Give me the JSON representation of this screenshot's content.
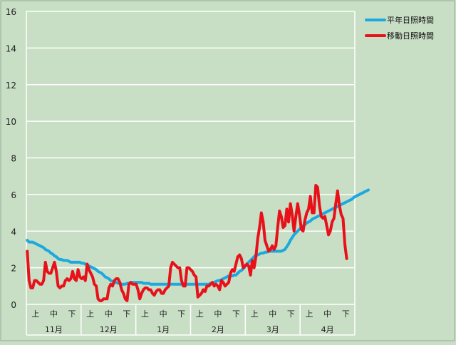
{
  "chart_data": {
    "type": "line",
    "ylim": [
      0,
      16
    ],
    "yticks": [
      0,
      2,
      4,
      6,
      8,
      10,
      12,
      14,
      16
    ],
    "grid": true,
    "legend_position": "top-right",
    "months": [
      "11月",
      "12月",
      "1月",
      "2月",
      "3月",
      "4月"
    ],
    "periods": [
      "上",
      "中",
      "下"
    ],
    "day_count": 181,
    "series": [
      {
        "name": "平年日照時間",
        "color": "#1ea8e0",
        "values": [
          3.5,
          3.4,
          3.4,
          3.4,
          3.35,
          3.3,
          3.25,
          3.2,
          3.15,
          3.1,
          3.0,
          2.95,
          2.9,
          2.8,
          2.75,
          2.65,
          2.6,
          2.5,
          2.45,
          2.45,
          2.4,
          2.4,
          2.4,
          2.35,
          2.3,
          2.3,
          2.3,
          2.3,
          2.3,
          2.3,
          2.25,
          2.25,
          2.2,
          2.15,
          2.1,
          2.05,
          2.0,
          1.95,
          1.9,
          1.8,
          1.75,
          1.7,
          1.6,
          1.5,
          1.45,
          1.4,
          1.3,
          1.25,
          1.2,
          1.2,
          1.15,
          1.15,
          1.1,
          1.1,
          1.1,
          1.15,
          1.15,
          1.2,
          1.2,
          1.2,
          1.2,
          1.2,
          1.2,
          1.2,
          1.15,
          1.15,
          1.15,
          1.15,
          1.1,
          1.1,
          1.1,
          1.1,
          1.1,
          1.1,
          1.1,
          1.1,
          1.1,
          1.1,
          1.1,
          1.1,
          1.1,
          1.1,
          1.1,
          1.1,
          1.1,
          1.1,
          1.1,
          1.1,
          1.1,
          1.1,
          1.1,
          1.1,
          1.1,
          1.1,
          1.1,
          1.1,
          1.1,
          1.1,
          1.1,
          1.1,
          1.1,
          1.15,
          1.15,
          1.2,
          1.25,
          1.3,
          1.3,
          1.35,
          1.4,
          1.45,
          1.5,
          1.55,
          1.55,
          1.55,
          1.6,
          1.6,
          1.7,
          1.8,
          1.85,
          1.95,
          2.05,
          2.2,
          2.3,
          2.4,
          2.5,
          2.6,
          2.7,
          2.7,
          2.75,
          2.8,
          2.8,
          2.85,
          2.85,
          2.9,
          2.9,
          2.9,
          2.9,
          2.9,
          2.9,
          2.9,
          2.9,
          2.95,
          3.0,
          3.15,
          3.3,
          3.5,
          3.65,
          3.8,
          3.9,
          4.0,
          4.1,
          4.2,
          4.3,
          4.35,
          4.45,
          4.5,
          4.55,
          4.65,
          4.7,
          4.75,
          4.8,
          4.85,
          4.9,
          4.95,
          5.0,
          5.05,
          5.1,
          5.15,
          5.2,
          5.25,
          5.3,
          5.35,
          5.4,
          5.45,
          5.5,
          5.55,
          5.6,
          5.65,
          5.7,
          5.75,
          5.85,
          5.9,
          5.95,
          6.0,
          6.05,
          6.1,
          6.15,
          6.2,
          6.25
        ]
      },
      {
        "name": "移動日照時間",
        "color": "#e8111a",
        "values": [
          2.9,
          1.3,
          0.9,
          0.9,
          1.3,
          1.3,
          1.2,
          1.1,
          1.1,
          1.3,
          2.3,
          1.8,
          1.7,
          1.7,
          2.0,
          2.3,
          1.8,
          1.0,
          0.9,
          1.0,
          1.0,
          1.3,
          1.4,
          1.3,
          1.4,
          1.8,
          1.4,
          1.3,
          1.9,
          1.5,
          1.4,
          1.5,
          1.3,
          2.2,
          1.9,
          1.7,
          1.5,
          1.1,
          1.0,
          0.3,
          0.2,
          0.2,
          0.3,
          0.3,
          0.3,
          0.9,
          1.1,
          1.0,
          1.3,
          1.4,
          1.4,
          1.2,
          0.8,
          0.6,
          0.3,
          0.2,
          1.1,
          1.2,
          1.1,
          1.1,
          1.1,
          0.8,
          0.3,
          0.6,
          0.8,
          0.9,
          0.9,
          0.8,
          0.8,
          0.6,
          0.5,
          0.7,
          0.8,
          0.8,
          0.6,
          0.6,
          0.8,
          0.9,
          1.0,
          2.0,
          2.3,
          2.2,
          2.1,
          2.0,
          2.0,
          1.3,
          1.0,
          1.0,
          2.0,
          2.0,
          1.9,
          1.8,
          1.6,
          1.5,
          0.4,
          0.5,
          0.6,
          0.8,
          0.7,
          1.0,
          1.0,
          1.1,
          1.2,
          1.0,
          1.1,
          1.0,
          0.8,
          1.3,
          1.2,
          1.0,
          1.1,
          1.2,
          1.7,
          1.9,
          1.8,
          2.2,
          2.6,
          2.7,
          2.5,
          2.0,
          2.1,
          2.2,
          2.1,
          1.6,
          2.4,
          2.0,
          2.6,
          3.6,
          4.2,
          5.0,
          4.5,
          3.5,
          3.2,
          2.9,
          3.0,
          3.2,
          3.0,
          3.2,
          4.2,
          5.1,
          4.8,
          4.2,
          4.3,
          5.2,
          4.5,
          5.5,
          4.9,
          4.0,
          4.8,
          5.5,
          4.9,
          4.1,
          4.0,
          4.6,
          5.0,
          5.2,
          5.9,
          5.0,
          5.0,
          6.5,
          6.4,
          5.4,
          4.8,
          4.7,
          4.8,
          4.3,
          3.8,
          4.0,
          4.5,
          4.7,
          5.5,
          6.2,
          5.4,
          4.9,
          4.7,
          3.3,
          2.5
        ]
      }
    ]
  }
}
